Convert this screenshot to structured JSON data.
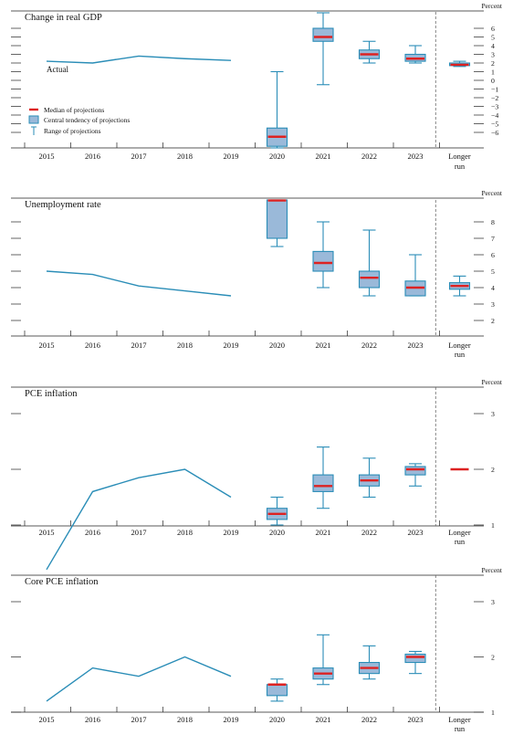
{
  "colors": {
    "line": "#2a8db7",
    "box_fill": "#9ab9d9",
    "median": "#dd2222",
    "axis": "#222222",
    "dash": "#666666"
  },
  "unit_label": "Percent",
  "categories": [
    "2015",
    "2016",
    "2017",
    "2018",
    "2019",
    "2020",
    "2021",
    "2022",
    "2023",
    "Longer run"
  ],
  "longer_run_label": [
    "Longer",
    "run"
  ],
  "legend": {
    "median": "Median of projections",
    "central": "Central tendency of projections",
    "range": "Range of projections"
  },
  "annotation": "Actual",
  "chart_data": [
    {
      "type": "box",
      "title": "Change in real GDP",
      "ylim": [
        -6,
        6
      ],
      "yticks": [
        -6,
        -5,
        -4,
        -3,
        -2,
        -1,
        0,
        1,
        2,
        3,
        4,
        5,
        6
      ],
      "actual": {
        "x": [
          "2015",
          "2016",
          "2017",
          "2018",
          "2019"
        ],
        "values": [
          2.2,
          2.0,
          2.8,
          2.5,
          2.3
        ]
      },
      "projections": [
        {
          "x": "2020",
          "range": [
            -10.0,
            1.0
          ],
          "central": [
            -7.6,
            -5.5
          ],
          "median": -6.5
        },
        {
          "x": "2021",
          "range": [
            -0.5,
            8.0
          ],
          "central": [
            4.5,
            6.0
          ],
          "median": 5.0
        },
        {
          "x": "2022",
          "range": [
            2.0,
            4.5
          ],
          "central": [
            2.5,
            3.5
          ],
          "median": 3.0
        },
        {
          "x": "2023",
          "range": [
            2.0,
            4.0
          ],
          "central": [
            2.2,
            3.0
          ],
          "median": 2.5
        },
        {
          "x": "Longer run",
          "range": [
            1.6,
            2.2
          ],
          "central": [
            1.7,
            2.0
          ],
          "median": 1.8
        }
      ]
    },
    {
      "type": "box",
      "title": "Unemployment rate",
      "ylim": [
        1,
        9
      ],
      "yticks": [
        2,
        3,
        4,
        5,
        6,
        7,
        8
      ],
      "actual": {
        "x": [
          "2015",
          "2016",
          "2017",
          "2018",
          "2019"
        ],
        "values": [
          5.0,
          4.8,
          4.1,
          3.8,
          3.5
        ]
      },
      "projections": [
        {
          "x": "2020",
          "range": [
            6.5,
            10.0
          ],
          "central": [
            7.0,
            9.5
          ],
          "median": 9.3
        },
        {
          "x": "2021",
          "range": [
            4.0,
            8.0
          ],
          "central": [
            5.0,
            6.2
          ],
          "median": 5.5
        },
        {
          "x": "2022",
          "range": [
            3.5,
            7.5
          ],
          "central": [
            4.0,
            5.0
          ],
          "median": 4.6
        },
        {
          "x": "2023",
          "range": [
            3.5,
            6.0
          ],
          "central": [
            3.5,
            4.4
          ],
          "median": 4.0
        },
        {
          "x": "Longer run",
          "range": [
            3.5,
            4.7
          ],
          "central": [
            3.9,
            4.3
          ],
          "median": 4.1
        }
      ]
    },
    {
      "type": "box",
      "title": "PCE inflation",
      "ylim": [
        0,
        3.5
      ],
      "yticks": [
        1,
        2,
        3
      ],
      "actual": {
        "x": [
          "2015",
          "2016",
          "2017",
          "2018",
          "2019"
        ],
        "values": [
          0.2,
          1.6,
          1.85,
          2.0,
          1.5
        ]
      },
      "projections": [
        {
          "x": "2020",
          "range": [
            1.0,
            1.5
          ],
          "central": [
            1.1,
            1.3
          ],
          "median": 1.2
        },
        {
          "x": "2021",
          "range": [
            1.3,
            2.4
          ],
          "central": [
            1.6,
            1.9
          ],
          "median": 1.7
        },
        {
          "x": "2022",
          "range": [
            1.5,
            2.2
          ],
          "central": [
            1.7,
            1.9
          ],
          "median": 1.8
        },
        {
          "x": "2023",
          "range": [
            1.7,
            2.1
          ],
          "central": [
            1.9,
            2.05
          ],
          "median": 2.0
        },
        {
          "x": "Longer run",
          "range": [
            2.0,
            2.0
          ],
          "central": [
            2.0,
            2.0
          ],
          "median": 2.0
        }
      ]
    },
    {
      "type": "box",
      "title": "Core PCE inflation",
      "ylim": [
        0,
        3.5
      ],
      "yticks": [
        1,
        2,
        3
      ],
      "actual": {
        "x": [
          "2015",
          "2016",
          "2017",
          "2018",
          "2019"
        ],
        "values": [
          1.2,
          1.8,
          1.65,
          2.0,
          1.65
        ]
      },
      "projections": [
        {
          "x": "2020",
          "range": [
            1.2,
            1.6
          ],
          "central": [
            1.3,
            1.5
          ],
          "median": 1.5
        },
        {
          "x": "2021",
          "range": [
            1.5,
            2.4
          ],
          "central": [
            1.6,
            1.8
          ],
          "median": 1.7
        },
        {
          "x": "2022",
          "range": [
            1.6,
            2.2
          ],
          "central": [
            1.7,
            1.9
          ],
          "median": 1.8
        },
        {
          "x": "2023",
          "range": [
            1.7,
            2.1
          ],
          "central": [
            1.9,
            2.05
          ],
          "median": 2.0
        }
      ]
    }
  ]
}
